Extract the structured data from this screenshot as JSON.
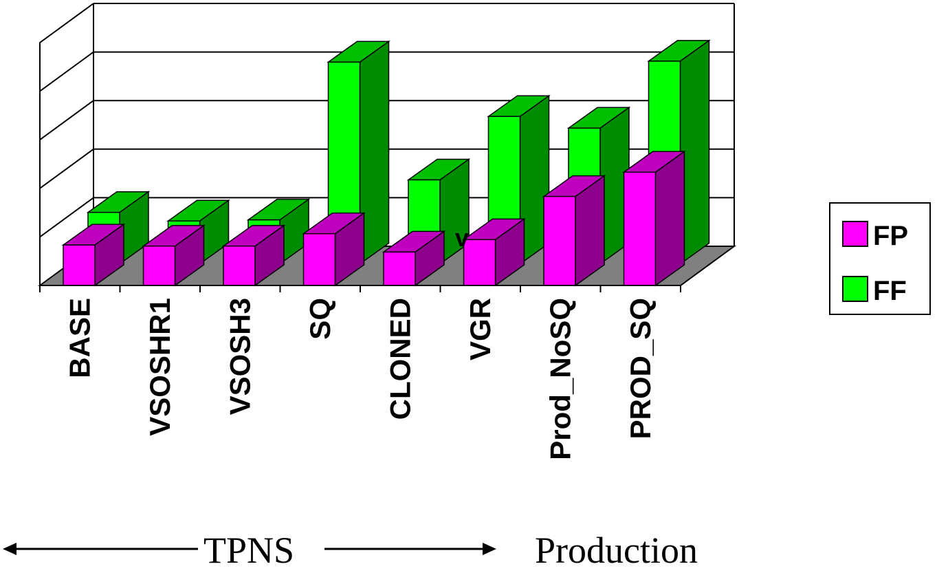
{
  "chart_data": {
    "type": "bar",
    "stacked": true,
    "three_d": true,
    "categories": [
      "BASE",
      "VSOSHR1",
      "VSOSH3",
      "SQ",
      "CLONED",
      "VGR",
      "Prod_NoSQ",
      "PROD_SQ"
    ],
    "series": [
      {
        "name": "FP",
        "color": "#ff00ff",
        "values": [
          0.75,
          0.73,
          0.73,
          0.96,
          0.62,
          0.85,
          1.65,
          2.1
        ]
      },
      {
        "name": "FF",
        "color": "#00ff00",
        "values": [
          0.22,
          0.08,
          0.1,
          2.8,
          0.95,
          1.9,
          0.9,
          1.7
        ]
      }
    ],
    "ylim": [
      0,
      4.5
    ],
    "gridlines": 5,
    "grid": true,
    "legend_position": "right",
    "axis_ticks": {
      "y": false,
      "x": true
    },
    "floor_color": "#808080",
    "group_labels": [
      {
        "label": "TPNS",
        "span": "left-arrow-both"
      },
      {
        "label": "Production",
        "span": "right"
      }
    ],
    "annotations": [
      {
        "text": "v",
        "near": "VGR"
      }
    ]
  }
}
